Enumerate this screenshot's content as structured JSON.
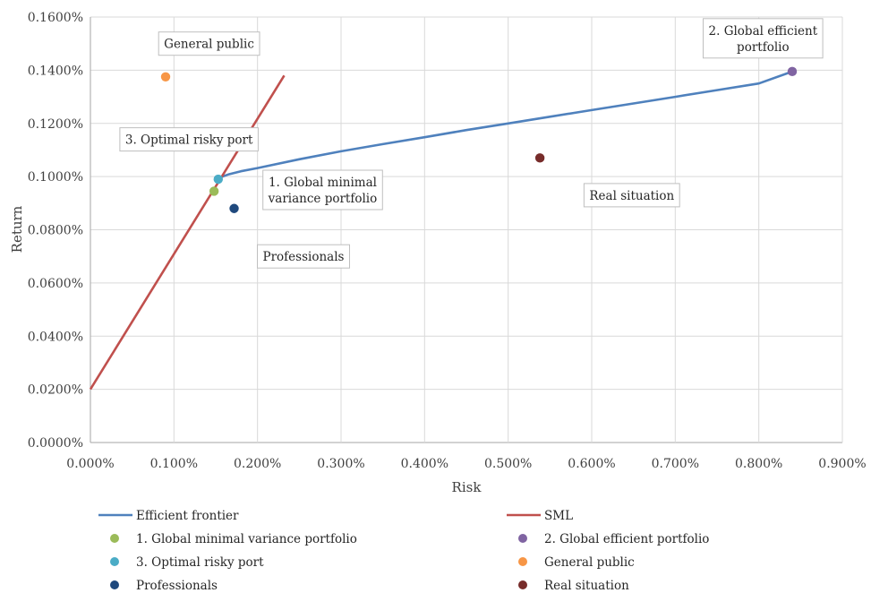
{
  "chart_data": {
    "type": "scatter",
    "xlabel": "Risk",
    "ylabel": "Return",
    "xlim": [
      0,
      0.009
    ],
    "ylim": [
      0,
      0.0016
    ],
    "x_ticks": [
      0,
      0.001,
      0.002,
      0.003,
      0.004,
      0.005,
      0.006,
      0.007,
      0.008,
      0.009
    ],
    "x_tick_labels": [
      "0.000%",
      "0.100%",
      "0.200%",
      "0.300%",
      "0.400%",
      "0.500%",
      "0.600%",
      "0.700%",
      "0.800%",
      "0.900%"
    ],
    "y_ticks": [
      0,
      0.0002,
      0.0004,
      0.0006,
      0.0008,
      0.001,
      0.0012,
      0.0014,
      0.0016
    ],
    "y_tick_labels": [
      "0.0000%",
      "0.0200%",
      "0.0400%",
      "0.0600%",
      "0.0800%",
      "0.1000%",
      "0.1200%",
      "0.1400%",
      "0.1600%"
    ],
    "grid": true,
    "legend_position": "bottom",
    "lines": [
      {
        "name": "Efficient frontier",
        "color": "#4f81bd",
        "points": [
          [
            0.00153,
            0.00099
          ],
          [
            0.00158,
            0.001
          ],
          [
            0.00165,
            0.001008
          ],
          [
            0.0018,
            0.00102
          ],
          [
            0.002,
            0.001032
          ],
          [
            0.0025,
            0.001065
          ],
          [
            0.003,
            0.001095
          ],
          [
            0.0035,
            0.001122
          ],
          [
            0.004,
            0.001148
          ],
          [
            0.0045,
            0.001175
          ],
          [
            0.005,
            0.0012
          ],
          [
            0.0055,
            0.001225
          ],
          [
            0.006,
            0.00125
          ],
          [
            0.0065,
            0.001275
          ],
          [
            0.007,
            0.0013
          ],
          [
            0.0075,
            0.001325
          ],
          [
            0.008,
            0.00135
          ],
          [
            0.0084,
            0.001395
          ]
        ]
      },
      {
        "name": "SML",
        "color": "#c0504d",
        "points": [
          [
            0,
            0.0002
          ],
          [
            0.00232,
            0.00138
          ]
        ]
      }
    ],
    "points": [
      {
        "name": "1. Global minimal variance portfolio",
        "color": "#9bbb59",
        "x": 0.00148,
        "y": 0.000945
      },
      {
        "name": "2. Global efficient portfolio",
        "color": "#8064a2",
        "x": 0.0084,
        "y": 0.001395
      },
      {
        "name": "3. Optimal risky port",
        "color": "#4bacc6",
        "x": 0.00153,
        "y": 0.00099
      },
      {
        "name": "General public",
        "color": "#f79646",
        "x": 0.0009,
        "y": 0.001375
      },
      {
        "name": "Professionals",
        "color": "#1f497d",
        "x": 0.00172,
        "y": 0.00088
      },
      {
        "name": "Real situation",
        "color": "#772c2a",
        "x": 0.00538,
        "y": 0.00107
      }
    ],
    "annotations": [
      {
        "lines": [
          "General public"
        ],
        "x": 0.00142,
        "y": 0.0015
      },
      {
        "lines": [
          "2. Global efficient",
          "portfolio"
        ],
        "x": 0.00805,
        "y": 0.00152
      },
      {
        "lines": [
          "3. Optimal risky port"
        ],
        "x": 0.00118,
        "y": 0.00114
      },
      {
        "lines": [
          "1. Global minimal",
          "variance portfolio"
        ],
        "x": 0.00278,
        "y": 0.00095
      },
      {
        "lines": [
          "Real situation"
        ],
        "x": 0.00648,
        "y": 0.00093
      },
      {
        "lines": [
          "Professionals"
        ],
        "x": 0.00255,
        "y": 0.0007
      }
    ],
    "legend": [
      {
        "label": "Efficient frontier",
        "kind": "line",
        "color": "#4f81bd"
      },
      {
        "label": "SML",
        "kind": "line",
        "color": "#c0504d"
      },
      {
        "label": "1. Global minimal variance portfolio",
        "kind": "marker",
        "color": "#9bbb59"
      },
      {
        "label": "2. Global efficient portfolio",
        "kind": "marker",
        "color": "#8064a2"
      },
      {
        "label": "3. Optimal risky port",
        "kind": "marker",
        "color": "#4bacc6"
      },
      {
        "label": "General public",
        "kind": "marker",
        "color": "#f79646"
      },
      {
        "label": "Professionals",
        "kind": "marker",
        "color": "#1f497d"
      },
      {
        "label": "Real situation",
        "kind": "marker",
        "color": "#772c2a"
      }
    ]
  }
}
